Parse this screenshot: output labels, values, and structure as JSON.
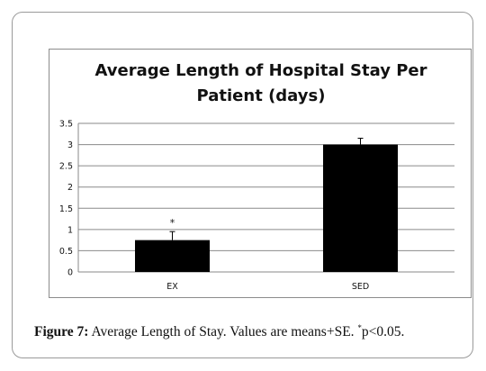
{
  "chart_data": {
    "type": "bar",
    "title_lines": [
      "Average Length of Hospital Stay Per",
      "Patient (days)"
    ],
    "categories": [
      "EX",
      "SED"
    ],
    "values": [
      0.75,
      3.0
    ],
    "error_plus": [
      0.2,
      0.15
    ],
    "annotations": [
      "*",
      ""
    ],
    "ylim": [
      0,
      3.5
    ],
    "yticks": [
      "0",
      "0.5",
      "1",
      "1.5",
      "2",
      "2.5",
      "3",
      "3.5"
    ],
    "ytick_values": [
      0,
      0.5,
      1,
      1.5,
      2,
      2.5,
      3,
      3.5
    ],
    "grid": true,
    "bar_color": "#000000",
    "grid_color": "#8a8a8a"
  },
  "caption": {
    "label": "Figure 7:",
    "text": " Average Length of Stay. Values are means+SE. ",
    "sup": "*",
    "tail": "p<0.05."
  }
}
